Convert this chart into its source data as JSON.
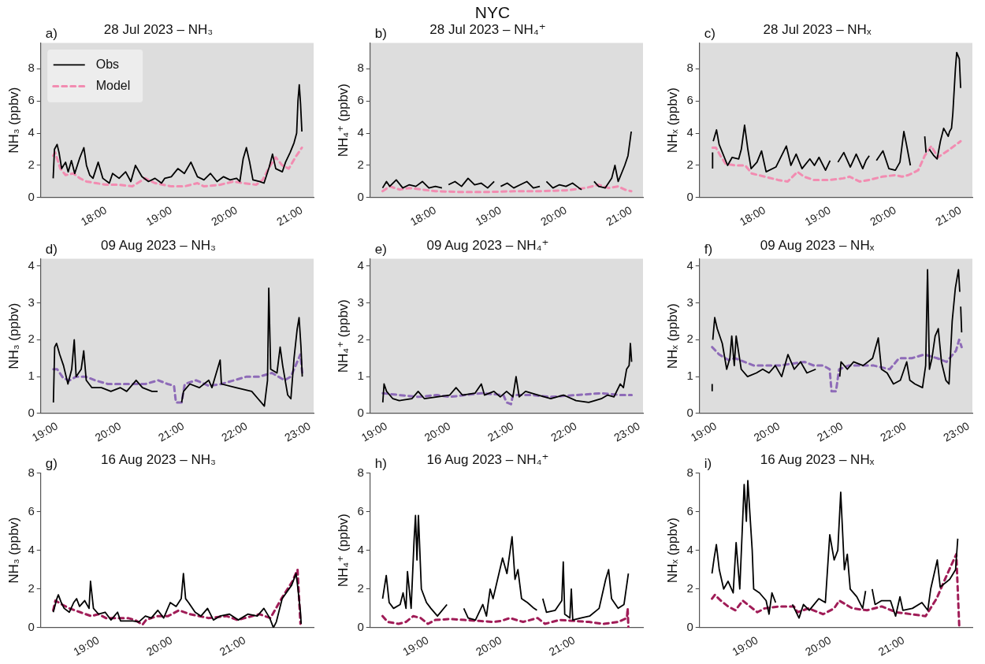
{
  "chart_data": [
    {
      "type": "other",
      "title": "NYC"
    },
    {
      "type": "line",
      "title": "28 Jul 2023 – NH₃",
      "ylabel": "NH₃ (ppbv)",
      "annotations": [
        "a)"
      ],
      "legend": "top left",
      "xlim": [
        17.0,
        21.18
      ],
      "xticks": [
        {
          "value": 18,
          "label": "18:00"
        },
        {
          "value": 19,
          "label": "19:00"
        },
        {
          "value": 20,
          "label": "20:00"
        },
        {
          "value": 21,
          "label": "21:00"
        }
      ],
      "ylim": [
        0,
        9.6
      ],
      "yticks": [
        0,
        2,
        4,
        6,
        8
      ],
      "series": [
        {
          "name": "Obs",
          "color": "#000000",
          "x": [
            17.19,
            17.21,
            17.25,
            17.28,
            17.32,
            17.38,
            17.42,
            17.47,
            17.52,
            17.6,
            17.66,
            17.7,
            17.75,
            17.8,
            17.88,
            17.95,
            18.05,
            18.1,
            18.2,
            18.3,
            18.38,
            18.45,
            18.55,
            18.65,
            18.75,
            18.85,
            18.9,
            19.0,
            19.1,
            19.2,
            19.3,
            19.4,
            19.5,
            19.6,
            19.7,
            19.8,
            19.9,
            20.0,
            20.05,
            20.1,
            20.15,
            20.2,
            20.25,
            20.35,
            20.42,
            20.5,
            20.55,
            20.6,
            20.7,
            20.75,
            20.82,
            20.88,
            20.92,
            20.94,
            20.96,
            20.98,
            21.0
          ],
          "values": [
            1.2,
            3.0,
            3.3,
            2.8,
            1.8,
            2.2,
            1.6,
            2.3,
            1.5,
            2.5,
            3.1,
            2.0,
            1.4,
            1.2,
            2.2,
            1.2,
            0.9,
            1.5,
            1.2,
            1.6,
            1.0,
            2.0,
            1.3,
            1.0,
            1.2,
            0.9,
            1.2,
            1.3,
            1.8,
            1.5,
            2.2,
            1.3,
            1.1,
            1.5,
            1.0,
            1.3,
            1.1,
            1.2,
            1.0,
            2.4,
            3.1,
            2.2,
            1.1,
            1.0,
            0.9,
            1.9,
            2.7,
            1.8,
            1.6,
            2.2,
            2.8,
            3.4,
            4.0,
            6.0,
            7.0,
            5.8,
            4.1
          ]
        },
        {
          "name": "Model",
          "color": "#f28cb1",
          "line_style": "dashed",
          "x": [
            17.19,
            17.22,
            17.3,
            17.38,
            17.5,
            17.6,
            17.7,
            17.85,
            18.0,
            18.2,
            18.4,
            18.6,
            18.75,
            19.0,
            19.2,
            19.4,
            19.5,
            19.75,
            19.95,
            20.1,
            20.3,
            20.4,
            20.5,
            20.6,
            20.7,
            20.8,
            20.9,
            21.0
          ],
          "values": [
            2.6,
            2.8,
            1.8,
            1.4,
            1.5,
            1.2,
            1.0,
            0.9,
            0.8,
            0.8,
            0.7,
            1.2,
            0.9,
            0.7,
            0.7,
            0.9,
            0.7,
            0.8,
            1.0,
            0.9,
            0.8,
            1.1,
            1.9,
            2.5,
            2.0,
            1.8,
            2.5,
            3.1
          ]
        }
      ]
    },
    {
      "type": "line",
      "title": "28 Jul 2023 – NH₄⁺",
      "ylabel": "NH₄⁺ (ppbv)",
      "annotations": [
        "b)"
      ],
      "xlim": [
        17.0,
        21.18
      ],
      "xticks": [
        {
          "value": 18,
          "label": "18:00"
        },
        {
          "value": 19,
          "label": "19:00"
        },
        {
          "value": 20,
          "label": "20:00"
        },
        {
          "value": 21,
          "label": "21:00"
        }
      ],
      "ylim": [
        0,
        9.6
      ],
      "yticks": [
        0,
        2,
        4,
        6,
        8
      ],
      "series": [
        {
          "color": "#000000",
          "x": [
            17.19,
            17.25,
            17.3,
            17.4,
            17.5,
            17.6,
            17.7,
            17.8,
            17.9,
            18.0,
            18.1,
            18.15,
            18.2,
            18.3,
            18.4,
            18.5,
            18.6,
            18.7,
            18.8,
            18.9,
            18.95,
            19.0,
            19.1,
            19.2,
            19.3,
            19.4,
            19.5,
            19.6,
            19.65,
            19.7,
            19.8,
            19.9,
            20.0,
            20.1,
            20.2,
            20.24,
            20.33,
            20.43,
            20.5,
            20.6,
            20.7,
            20.75,
            20.8,
            20.85,
            20.9,
            20.95,
            21.0
          ],
          "values": [
            0.6,
            1.0,
            0.7,
            1.1,
            0.6,
            0.8,
            0.7,
            1.0,
            0.6,
            0.7,
            0.6,
            null,
            0.8,
            1.0,
            0.7,
            1.2,
            0.8,
            0.9,
            0.6,
            1.0,
            null,
            0.7,
            0.9,
            0.6,
            0.8,
            1.0,
            0.6,
            0.7,
            null,
            1.0,
            0.6,
            0.8,
            0.7,
            0.9,
            0.6,
            0.5,
            null,
            1.0,
            0.7,
            0.6,
            1.2,
            2.0,
            1.0,
            1.5,
            2.0,
            2.6,
            4.1
          ]
        },
        {
          "color": "#f28cb1",
          "line_style": "dashed",
          "x": [
            17.19,
            17.3,
            17.45,
            17.6,
            17.8,
            18.0,
            18.4,
            18.8,
            19.2,
            19.6,
            20.0,
            20.3,
            20.5,
            20.65,
            20.8,
            20.9,
            21.0
          ],
          "values": [
            0.4,
            0.7,
            0.5,
            0.6,
            0.5,
            0.4,
            0.35,
            0.35,
            0.4,
            0.4,
            0.45,
            0.6,
            0.8,
            0.6,
            0.7,
            0.5,
            0.4
          ]
        }
      ]
    },
    {
      "type": "line",
      "title": "28 Jul 2023 – NHₓ",
      "ylabel": "NHₓ (ppbv)",
      "annotations": [
        "c)"
      ],
      "xlim": [
        17.0,
        21.18
      ],
      "xticks": [
        {
          "value": 18,
          "label": "18:00"
        },
        {
          "value": 19,
          "label": "19:00"
        },
        {
          "value": 20,
          "label": "20:00"
        },
        {
          "value": 21,
          "label": "21:00"
        }
      ],
      "ylim": [
        0,
        9.6
      ],
      "yticks": [
        0,
        2,
        4,
        6,
        8
      ],
      "series": [
        {
          "color": "#000000",
          "x": [
            17.2,
            17.2,
            17.205,
            17.21,
            17.26,
            17.3,
            17.38,
            17.43,
            17.5,
            17.6,
            17.64,
            17.69,
            17.74,
            17.79,
            17.88,
            17.95,
            18.02,
            18.17,
            18.33,
            18.4,
            18.48,
            18.57,
            18.69,
            18.76,
            18.83,
            18.93,
            19.0,
            19.05,
            19.12,
            19.21,
            19.31,
            19.4,
            19.5,
            19.55,
            19.6,
            19.64,
            19.68,
            19.71,
            19.81,
            19.9,
            20.0,
            20.07,
            20.13,
            20.17,
            20.23,
            20.35,
            20.45,
            20.47,
            20.5,
            20.52,
            20.59,
            20.64,
            20.69,
            20.74,
            20.81,
            20.83,
            20.86,
            20.88,
            20.92,
            20.94,
            20.98,
            21.0
          ],
          "values": [
            1.8,
            2.8,
            null,
            3.5,
            4.2,
            3.3,
            2.5,
            2.0,
            2.5,
            2.4,
            3.0,
            4.5,
            3.0,
            1.8,
            2.2,
            2.9,
            1.6,
            1.9,
            3.2,
            2.0,
            2.7,
            1.8,
            2.4,
            2.0,
            2.5,
            1.7,
            2.3,
            null,
            2.2,
            2.8,
            1.9,
            2.7,
            1.8,
            2.3,
            2.6,
            null,
            null,
            2.3,
            2.9,
            1.8,
            1.7,
            2.2,
            4.1,
            3.3,
            2.0,
            null,
            3.8,
            2.8,
            null,
            3.0,
            2.6,
            2.4,
            3.5,
            4.3,
            3.8,
            4.1,
            4.3,
            5.2,
            8.0,
            9.0,
            8.6,
            6.8
          ]
        },
        {
          "color": "#f28cb1",
          "line_style": "dashed",
          "x": [
            17.2,
            17.25,
            17.32,
            17.4,
            17.55,
            17.7,
            17.8,
            18.0,
            18.2,
            18.35,
            18.5,
            18.6,
            18.75,
            19.0,
            19.2,
            19.3,
            19.45,
            19.6,
            19.8,
            20.0,
            20.1,
            20.2,
            20.35,
            20.45,
            20.55,
            20.65,
            20.8,
            21.0
          ],
          "values": [
            3.1,
            3.1,
            2.6,
            2.1,
            2.0,
            2.0,
            1.5,
            1.3,
            1.1,
            1.0,
            1.6,
            1.3,
            1.1,
            1.1,
            1.2,
            1.3,
            1.0,
            1.1,
            1.3,
            1.4,
            1.3,
            1.4,
            1.7,
            2.6,
            3.2,
            2.5,
            2.9,
            3.5
          ]
        }
      ]
    },
    {
      "type": "line",
      "title": "09 Aug 2023 – NH₃",
      "ylabel": "NH₃ (ppbv)",
      "annotations": [
        "d)"
      ],
      "xlim": [
        18.74,
        23.06
      ],
      "xticks": [
        {
          "value": 19,
          "label": "19:00"
        },
        {
          "value": 20,
          "label": "20:00"
        },
        {
          "value": 21,
          "label": "21:00"
        },
        {
          "value": 22,
          "label": "22:00"
        },
        {
          "value": 23,
          "label": "23:00"
        }
      ],
      "ylim": [
        0,
        4.2
      ],
      "yticks": [
        0,
        1,
        2,
        3,
        4
      ],
      "series": [
        {
          "color": "#000000",
          "x": [
            18.94,
            18.96,
            18.99,
            19.04,
            19.1,
            19.17,
            19.23,
            19.27,
            19.3,
            19.38,
            19.42,
            19.46,
            19.55,
            19.7,
            19.85,
            20.0,
            20.1,
            20.25,
            20.35,
            20.5,
            20.59,
            20.75,
            20.97,
            21.0,
            21.1,
            21.25,
            21.4,
            21.45,
            21.58,
            21.6,
            21.83,
            22.08,
            22.18,
            22.28,
            22.33,
            22.35,
            22.38,
            22.48,
            22.53,
            22.57,
            22.65,
            22.7,
            22.75,
            22.8,
            22.83,
            22.86,
            22.88
          ],
          "values": [
            0.3,
            1.8,
            1.9,
            1.6,
            1.3,
            0.8,
            1.2,
            2.0,
            1.0,
            1.2,
            1.7,
            0.9,
            0.7,
            0.7,
            0.6,
            0.7,
            0.6,
            0.9,
            0.7,
            0.6,
            0.6,
            null,
            0.3,
            0.6,
            0.8,
            0.7,
            0.9,
            0.7,
            1.45,
            0.8,
            0.7,
            0.6,
            0.4,
            0.2,
            0.9,
            3.4,
            1.2,
            1.1,
            1.8,
            1.3,
            0.5,
            0.4,
            1.5,
            2.3,
            2.6,
            1.8,
            1.0
          ]
        },
        {
          "color": "#8e6bb8",
          "line_style": "dashed",
          "x": [
            18.94,
            19.0,
            19.1,
            19.2,
            19.3,
            19.45,
            19.6,
            19.8,
            20.0,
            20.2,
            20.4,
            20.6,
            20.75,
            20.85,
            20.88,
            20.97,
            21.02,
            21.2,
            21.4,
            21.6,
            21.8,
            22.0,
            22.2,
            22.4,
            22.6,
            22.7,
            22.8,
            22.85,
            22.88
          ],
          "values": [
            1.2,
            1.2,
            0.95,
            0.9,
            1.0,
            1.0,
            0.9,
            0.8,
            0.8,
            0.8,
            0.8,
            0.9,
            0.8,
            0.75,
            0.3,
            0.3,
            0.8,
            0.9,
            0.75,
            0.8,
            0.9,
            1.0,
            1.0,
            1.1,
            0.9,
            1.0,
            1.4,
            1.6,
            1.1
          ]
        }
      ]
    },
    {
      "type": "line",
      "title": "09 Aug 2023 – NH₄⁺",
      "ylabel": "NH₄⁺ (ppbv)",
      "annotations": [
        "e)"
      ],
      "xlim": [
        18.74,
        23.06
      ],
      "xticks": [
        {
          "value": 19,
          "label": "19:00"
        },
        {
          "value": 20,
          "label": "20:00"
        },
        {
          "value": 21,
          "label": "21:00"
        },
        {
          "value": 22,
          "label": "22:00"
        },
        {
          "value": 23,
          "label": "23:00"
        }
      ],
      "ylim": [
        0,
        4.2
      ],
      "yticks": [
        0,
        1,
        2,
        3,
        4
      ],
      "series": [
        {
          "color": "#000000",
          "x": [
            18.94,
            18.96,
            19.0,
            19.1,
            19.2,
            19.4,
            19.5,
            19.6,
            19.8,
            20.0,
            20.1,
            20.2,
            20.4,
            20.5,
            20.55,
            20.7,
            20.8,
            20.9,
            21.0,
            21.05,
            21.1,
            21.2,
            21.4,
            21.6,
            21.8,
            22.0,
            22.2,
            22.4,
            22.5,
            22.6,
            22.7,
            22.75,
            22.8,
            22.84,
            22.86,
            22.88
          ],
          "values": [
            0.3,
            0.8,
            0.6,
            0.4,
            0.35,
            0.4,
            0.6,
            0.4,
            0.45,
            0.5,
            0.7,
            0.5,
            0.55,
            0.8,
            0.5,
            0.6,
            0.45,
            0.6,
            0.45,
            1.0,
            0.45,
            0.6,
            0.5,
            0.4,
            0.5,
            0.35,
            0.3,
            0.4,
            0.5,
            0.45,
            0.8,
            0.7,
            1.2,
            1.3,
            1.9,
            1.4
          ]
        },
        {
          "color": "#8e6bb8",
          "line_style": "dashed",
          "x": [
            18.94,
            19.2,
            19.5,
            19.8,
            20.0,
            20.5,
            20.85,
            20.9,
            20.97,
            21.0,
            21.3,
            21.6,
            22.0,
            22.4,
            22.7,
            22.88
          ],
          "values": [
            0.55,
            0.5,
            0.45,
            0.5,
            0.45,
            0.55,
            0.5,
            0.3,
            0.25,
            0.5,
            0.5,
            0.45,
            0.5,
            0.55,
            0.5,
            0.5
          ]
        }
      ]
    },
    {
      "type": "line",
      "title": "09 Aug 2023 – NHₓ",
      "ylabel": "NHₓ (ppbv)",
      "annotations": [
        "f)"
      ],
      "xlim": [
        18.74,
        23.06
      ],
      "xticks": [
        {
          "value": 19,
          "label": "19:00"
        },
        {
          "value": 20,
          "label": "20:00"
        },
        {
          "value": 21,
          "label": "21:00"
        },
        {
          "value": 22,
          "label": "22:00"
        },
        {
          "value": 23,
          "label": "23:00"
        }
      ],
      "ylim": [
        0,
        4.2
      ],
      "yticks": [
        0,
        1,
        2,
        3,
        4
      ],
      "series": [
        {
          "color": "#000000",
          "x": [
            18.94,
            18.94,
            18.945,
            18.95,
            18.98,
            19.02,
            19.1,
            19.17,
            19.22,
            19.25,
            19.29,
            19.32,
            19.4,
            19.5,
            19.64,
            19.74,
            19.84,
            19.94,
            20.04,
            20.14,
            20.24,
            20.34,
            20.44,
            20.58,
            20.7,
            20.96,
            20.98,
            21.08,
            21.18,
            21.33,
            21.48,
            21.57,
            21.62,
            21.71,
            21.81,
            21.92,
            22.02,
            22.07,
            22.15,
            22.27,
            22.32,
            22.35,
            22.38,
            22.42,
            22.47,
            22.52,
            22.57,
            22.64,
            22.69,
            22.74,
            22.79,
            22.84,
            22.86,
            22.87,
            22.875,
            22.89
          ],
          "values": [
            0.6,
            0.8,
            null,
            2.0,
            2.6,
            2.3,
            1.9,
            1.2,
            1.5,
            2.1,
            1.3,
            2.1,
            1.2,
            1.0,
            1.1,
            1.2,
            1.1,
            1.3,
            1.0,
            1.6,
            1.2,
            1.4,
            1.1,
            1.2,
            null,
            1.0,
            1.4,
            1.2,
            1.4,
            1.3,
            1.5,
            2.05,
            1.2,
            1.1,
            0.8,
            0.9,
            1.4,
            0.9,
            0.8,
            0.7,
            1.3,
            3.9,
            1.2,
            1.5,
            2.1,
            2.3,
            1.4,
            0.9,
            0.8,
            2.5,
            3.4,
            3.9,
            3.3,
            null,
            2.9,
            2.2
          ]
        },
        {
          "color": "#8e6bb8",
          "line_style": "dashed",
          "x": [
            18.94,
            19.05,
            19.2,
            19.3,
            19.45,
            19.6,
            19.8,
            20.0,
            20.2,
            20.4,
            20.55,
            20.7,
            20.8,
            20.83,
            20.9,
            20.95,
            21.1,
            21.3,
            21.5,
            21.75,
            21.9,
            22.1,
            22.3,
            22.5,
            22.65,
            22.8,
            22.85,
            22.89
          ],
          "values": [
            1.8,
            1.6,
            1.45,
            1.5,
            1.4,
            1.3,
            1.3,
            1.3,
            1.35,
            1.4,
            1.3,
            1.3,
            1.2,
            0.6,
            0.6,
            1.2,
            1.3,
            1.3,
            1.3,
            1.2,
            1.5,
            1.5,
            1.6,
            1.5,
            1.4,
            1.7,
            2.0,
            1.8
          ]
        }
      ]
    },
    {
      "type": "line",
      "title": "16 Aug 2023 – NH₃",
      "ylabel": "NH₃ (ppbv)",
      "annotations": [
        "g)"
      ],
      "xlim": [
        18.21,
        21.94
      ],
      "xticks": [
        {
          "value": 19,
          "label": "19:00"
        },
        {
          "value": 20,
          "label": "20:00"
        },
        {
          "value": 21,
          "label": "21:00"
        }
      ],
      "ylim": [
        0,
        8
      ],
      "yticks": [
        0,
        2,
        4,
        6,
        8
      ],
      "series": [
        {
          "color": "#000000",
          "x": [
            18.38,
            18.43,
            18.45,
            18.49,
            18.53,
            18.6,
            18.66,
            18.7,
            18.74,
            18.81,
            18.87,
            18.89,
            18.93,
            19.0,
            19.09,
            19.17,
            19.26,
            19.3,
            19.47,
            19.55,
            19.64,
            19.72,
            19.81,
            19.89,
            19.98,
            20.06,
            20.13,
            20.16,
            20.19,
            20.23,
            20.32,
            20.4,
            20.49,
            20.57,
            20.66,
            20.79,
            20.91,
            21.04,
            21.17,
            21.26,
            21.34,
            21.39,
            21.43,
            21.51,
            21.64,
            21.7,
            21.72,
            21.76,
            21.77
          ],
          "values": [
            0.8,
            1.5,
            1.7,
            1.3,
            1.0,
            0.8,
            1.3,
            1.5,
            1.1,
            1.4,
            1.0,
            2.4,
            1.0,
            0.7,
            0.8,
            0.4,
            0.8,
            0.35,
            0.35,
            0.3,
            0.6,
            0.5,
            0.9,
            0.5,
            1.3,
            1.1,
            1.5,
            2.8,
            1.5,
            1.3,
            0.8,
            0.6,
            1.0,
            0.4,
            0.6,
            0.7,
            0.4,
            0.7,
            0.6,
            1.0,
            0.5,
            0.0,
            0.3,
            1.5,
            2.2,
            2.8,
            2.2,
            0.8,
            0.2
          ]
        },
        {
          "color": "#a01c57",
          "line_style": "dashed",
          "x": [
            18.38,
            18.41,
            18.5,
            18.6,
            18.75,
            18.9,
            19.0,
            19.1,
            19.2,
            19.4,
            19.5,
            19.6,
            19.65,
            19.8,
            19.95,
            20.1,
            20.25,
            20.5,
            20.75,
            20.9,
            21.0,
            21.2,
            21.35,
            21.5,
            21.65,
            21.72,
            21.76
          ],
          "values": [
            0.9,
            1.4,
            1.2,
            1.0,
            0.8,
            0.6,
            0.7,
            0.5,
            0.5,
            0.5,
            0.4,
            0.15,
            0.4,
            0.6,
            0.6,
            0.9,
            0.7,
            0.5,
            0.6,
            0.4,
            0.5,
            0.7,
            0.5,
            1.5,
            2.4,
            3.0,
            0.2
          ]
        }
      ]
    },
    {
      "type": "line",
      "title": "16 Aug 2023 – NH₄⁺",
      "ylabel": "NH₄⁺ (ppbv)",
      "annotations": [
        "h)"
      ],
      "xlim": [
        18.21,
        21.94
      ],
      "xticks": [
        {
          "value": 19,
          "label": "19:00"
        },
        {
          "value": 20,
          "label": "20:00"
        },
        {
          "value": 21,
          "label": "21:00"
        }
      ],
      "ylim": [
        0,
        8
      ],
      "yticks": [
        0,
        2,
        4,
        6,
        8
      ],
      "series": [
        {
          "color": "#000000",
          "x": [
            18.38,
            18.43,
            18.47,
            18.53,
            18.62,
            18.66,
            18.7,
            18.72,
            18.77,
            18.81,
            18.83,
            18.85,
            18.87,
            18.91,
            18.98,
            19.04,
            19.13,
            19.26,
            19.38,
            19.49,
            19.55,
            19.65,
            19.75,
            19.8,
            19.85,
            19.89,
            20.02,
            20.08,
            20.15,
            20.19,
            20.23,
            20.28,
            20.36,
            20.45,
            20.49,
            20.53,
            20.57,
            20.62,
            20.74,
            20.83,
            20.85,
            20.87,
            20.94,
            20.96,
            20.98,
            21.09,
            21.21,
            21.34,
            21.43,
            21.47,
            21.51,
            21.6,
            21.68,
            21.74
          ],
          "values": [
            1.5,
            2.7,
            1.3,
            1.0,
            1.2,
            1.8,
            1.0,
            2.9,
            1.0,
            4.5,
            5.8,
            3.5,
            5.8,
            2.0,
            1.3,
            1.0,
            0.6,
            1.2,
            null,
            1.0,
            0.5,
            0.4,
            1.2,
            0.6,
            2.0,
            1.5,
            3.6,
            2.8,
            4.7,
            2.5,
            3.0,
            1.5,
            1.3,
            1.0,
            0.9,
            null,
            1.5,
            0.8,
            0.9,
            1.4,
            3.4,
            0.7,
            0.5,
            2.0,
            0.4,
            0.5,
            0.6,
            1.0,
            2.5,
            3.0,
            1.5,
            1.0,
            1.2,
            2.8
          ]
        },
        {
          "color": "#a01c57",
          "line_style": "dashed",
          "x": [
            18.38,
            18.45,
            18.6,
            18.7,
            18.8,
            18.9,
            19.0,
            19.1,
            19.3,
            19.5,
            19.7,
            19.9,
            20.0,
            20.12,
            20.3,
            20.5,
            20.6,
            20.8,
            21.0,
            21.2,
            21.4,
            21.6,
            21.72,
            21.73,
            21.74
          ],
          "values": [
            0.6,
            0.3,
            0.2,
            0.3,
            0.6,
            0.5,
            0.2,
            0.4,
            0.45,
            0.4,
            0.35,
            0.3,
            0.35,
            0.5,
            0.3,
            0.5,
            0.2,
            0.4,
            0.35,
            0.3,
            0.2,
            0.3,
            0.5,
            1.0,
            0.0
          ]
        }
      ]
    },
    {
      "type": "line",
      "title": "16 Aug 2023 – NHₓ",
      "ylabel": "NHₓ (ppbv)",
      "annotations": [
        "i)"
      ],
      "xlim": [
        18.21,
        21.94
      ],
      "xticks": [
        {
          "value": 19,
          "label": "19:00"
        },
        {
          "value": 20,
          "label": "20:00"
        },
        {
          "value": 21,
          "label": "21:00"
        }
      ],
      "ylim": [
        0,
        8
      ],
      "yticks": [
        0,
        2,
        4,
        6,
        8
      ],
      "series": [
        {
          "color": "#000000",
          "x": [
            18.38,
            18.41,
            18.44,
            18.48,
            18.54,
            18.6,
            18.67,
            18.71,
            18.76,
            18.82,
            18.85,
            18.87,
            18.93,
            18.95,
            19.03,
            19.12,
            19.16,
            19.2,
            19.25,
            19.37,
            19.48,
            19.57,
            19.63,
            19.71,
            19.84,
            19.93,
            19.99,
            20.05,
            20.1,
            20.14,
            20.19,
            20.23,
            20.27,
            20.36,
            20.44,
            20.48,
            20.52,
            20.57,
            20.61,
            20.7,
            20.82,
            20.89,
            20.95,
            20.99,
            21.12,
            21.25,
            21.33,
            21.37,
            21.46,
            21.5,
            21.63,
            21.71,
            21.74
          ],
          "values": [
            2.8,
            3.6,
            4.3,
            3.0,
            2.0,
            2.4,
            1.8,
            4.4,
            2.0,
            7.4,
            5.5,
            7.6,
            4.0,
            2.0,
            1.8,
            1.4,
            0.7,
            1.8,
            1.3,
            null,
            1.2,
            0.5,
            1.2,
            0.9,
            1.5,
            1.3,
            4.8,
            3.5,
            4.0,
            7.0,
            3.0,
            3.8,
            2.0,
            1.6,
            1.0,
            1.9,
            null,
            2.0,
            1.2,
            1.4,
            1.4,
            0.6,
            1.6,
            0.9,
            1.0,
            1.3,
            0.9,
            2.0,
            3.5,
            2.1,
            2.5,
            3.0,
            4.6
          ]
        },
        {
          "color": "#a01c57",
          "line_style": "dashed",
          "x": [
            18.38,
            18.42,
            18.5,
            18.6,
            18.7,
            18.8,
            18.9,
            19.0,
            19.1,
            19.3,
            19.5,
            19.55,
            19.7,
            19.9,
            20.05,
            20.12,
            20.3,
            20.5,
            20.7,
            20.9,
            21.1,
            21.3,
            21.45,
            21.6,
            21.72,
            21.76
          ],
          "values": [
            1.5,
            1.7,
            1.4,
            1.1,
            0.9,
            1.4,
            1.1,
            0.8,
            1.0,
            1.1,
            1.1,
            0.8,
            1.0,
            0.7,
            1.0,
            1.4,
            1.0,
            0.9,
            1.1,
            0.8,
            0.7,
            0.6,
            1.5,
            2.8,
            3.8,
            0.1
          ]
        }
      ]
    }
  ]
}
